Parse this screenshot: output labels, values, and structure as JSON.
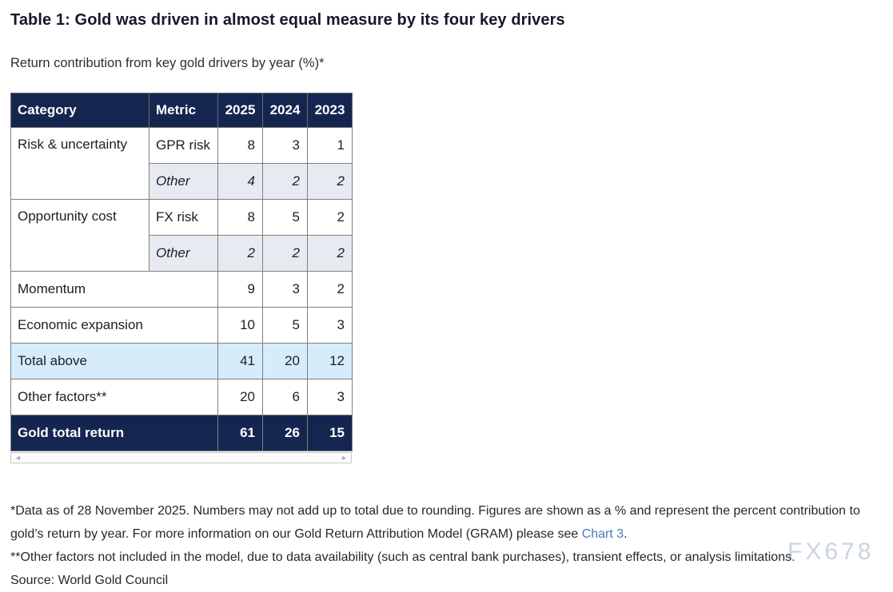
{
  "page": {
    "title": "Table 1: Gold was driven in almost equal measure by its four key drivers",
    "subtitle": "Return contribution from key gold drivers by year (%)*"
  },
  "table": {
    "header": [
      "Category",
      "Metric",
      "2025",
      "2024",
      "2023"
    ],
    "rows": {
      "gpr": {
        "category": "Risk & uncertainty",
        "metric": "GPR risk",
        "y2025": "8",
        "y2024": "3",
        "y2023": "1"
      },
      "risk_other": {
        "metric": "Other",
        "y2025": "4",
        "y2024": "2",
        "y2023": "2"
      },
      "fx": {
        "category": "Opportunity cost",
        "metric": "FX risk",
        "y2025": "8",
        "y2024": "5",
        "y2023": "2"
      },
      "opp_other": {
        "metric": "Other",
        "y2025": "2",
        "y2024": "2",
        "y2023": "2"
      },
      "momentum": {
        "category": "Momentum",
        "y2025": "9",
        "y2024": "3",
        "y2023": "2"
      },
      "economic": {
        "category": "Economic expansion",
        "y2025": "10",
        "y2024": "5",
        "y2023": "3"
      },
      "total": {
        "category": "Total above",
        "y2025": "41",
        "y2024": "20",
        "y2023": "12"
      },
      "other_factors": {
        "category": "Other factors**",
        "y2025": "20",
        "y2024": "6",
        "y2023": "3"
      },
      "grand": {
        "category": "Gold total return",
        "y2025": "61",
        "y2024": "26",
        "y2023": "15"
      }
    }
  },
  "footnotes": {
    "line1_part1": "*Data as of 28 November 2025. Numbers may not add up to total due to rounding. Figures are shown as a % and represent the percent contribution to gold’s return by year. For more information on our Gold Return Attribution Model (GRAM) please see ",
    "line1_link": "Chart 3",
    "line1_part2": ".",
    "line2": "**Other factors not included in the model, due to data availability (such as central bank purchases), transient effects, or analysis limitations.",
    "source": "Source: World Gold Council"
  },
  "scrollbar": {
    "left_arrow": "◄",
    "right_arrow": "►"
  },
  "watermark": {
    "text": "FX678"
  },
  "colors": {
    "header_bg": "#142650",
    "alt_row_bg": "#e8eaf1",
    "total_row_bg": "#d6ecfa",
    "link": "#4a7ab5"
  }
}
